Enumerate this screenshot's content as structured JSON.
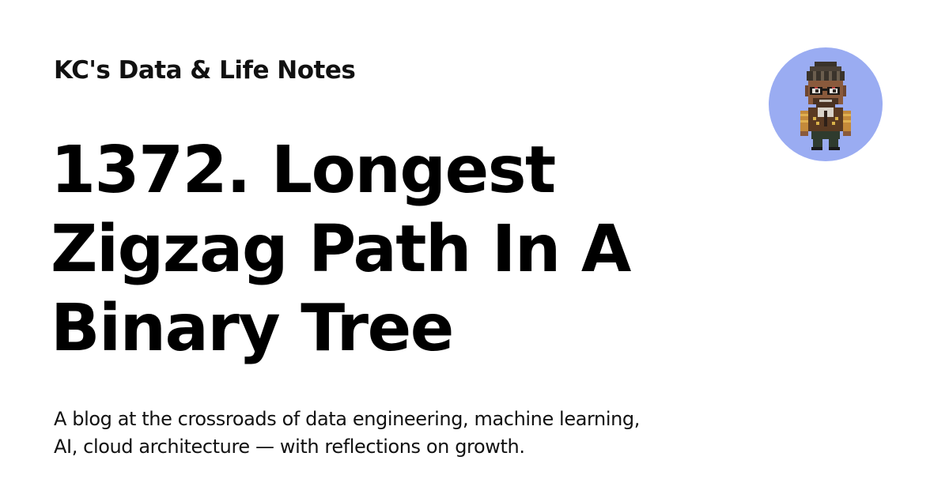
{
  "site": {
    "name": "KC's Data & Life Notes"
  },
  "post": {
    "title": "1372. Longest Zigzag Path In A Binary Tree"
  },
  "tagline": {
    "line1": "A blog at the crossroads of data engineering, machine learning,",
    "line2": "AI, cloud architecture — with reflections on growth."
  },
  "avatar": {
    "icon": "pixel-art-avatar-icon",
    "background_color": "#9aacf2"
  }
}
